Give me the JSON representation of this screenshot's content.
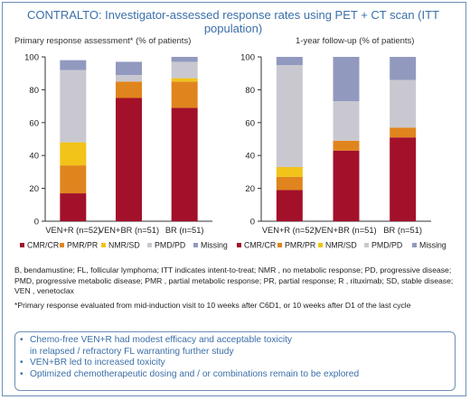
{
  "header": {
    "title": "CONTRALTO: Investigator-assessed response rates using PET + CT scan (ITT population)"
  },
  "chart_data": [
    {
      "type": "bar",
      "stacked": true,
      "title": "Primary response assessment* (% of patients)",
      "categories": [
        "VEN+R (n=52)",
        "VEN+BR (n=51)",
        "BR (n=51)"
      ],
      "ylim": [
        0,
        100
      ],
      "yticks": [
        "0",
        "20",
        "40",
        "60",
        "80",
        "100"
      ],
      "series": [
        {
          "name": "CMR/CR",
          "color": "#a3102a",
          "values": [
            17,
            75,
            69
          ]
        },
        {
          "name": "PMR/PR",
          "color": "#e0851d",
          "values": [
            17,
            10,
            16
          ]
        },
        {
          "name": "NMR/SD",
          "color": "#f2c318",
          "values": [
            14,
            0,
            2
          ]
        },
        {
          "name": "PMD/PD",
          "color": "#c9c8d0",
          "values": [
            44,
            4,
            10
          ]
        },
        {
          "name": "Missing",
          "color": "#9299bf",
          "values": [
            6,
            8,
            3
          ]
        }
      ],
      "legend_position": "bottom"
    },
    {
      "type": "bar",
      "stacked": true,
      "title": "1-year follow-up (% of patients)",
      "categories": [
        "VEN+R (n=52)",
        "VEN+BR (n=51)",
        "BR (n=51)"
      ],
      "ylim": [
        0,
        100
      ],
      "yticks": [
        "0",
        "20",
        "40",
        "60",
        "80",
        "100"
      ],
      "series": [
        {
          "name": "CMR/CR",
          "color": "#a3102a",
          "values": [
            19,
            43,
            51
          ]
        },
        {
          "name": "PMR/PR",
          "color": "#e0851d",
          "values": [
            8,
            6,
            6
          ]
        },
        {
          "name": "NMR/SD",
          "color": "#f2c318",
          "values": [
            6,
            0,
            0
          ]
        },
        {
          "name": "PMD/PD",
          "color": "#c9c8d0",
          "values": [
            62,
            24,
            29
          ]
        },
        {
          "name": "Missing",
          "color": "#9299bf",
          "values": [
            5,
            27,
            14
          ]
        }
      ],
      "legend_position": "bottom"
    }
  ],
  "footnotes": {
    "abbreviations": "B, bendamustine; FL, follicular lymphoma; ITT indicates intent-to-treat; NMR , no metabolic response; PD, progressive disease; PMD, progressive metabolic disease; PMR , partial metabolic response; PR, partial response; R , rituximab; SD, stable disease; VEN , venetoclax",
    "primary_response": "*Primary response evaluated from mid-induction visit to 10 weeks after C6D1, or 10 weeks after D1 of the last cycle"
  },
  "conclusions": [
    "Chemo-free VEN+R had modest efficacy and acceptable toxicity in relapsed / refractory FL warranting further study",
    "VEN+BR led to increased toxicity",
    "Optimized chemotherapeutic dosing and / or combinations remain to be explored"
  ]
}
